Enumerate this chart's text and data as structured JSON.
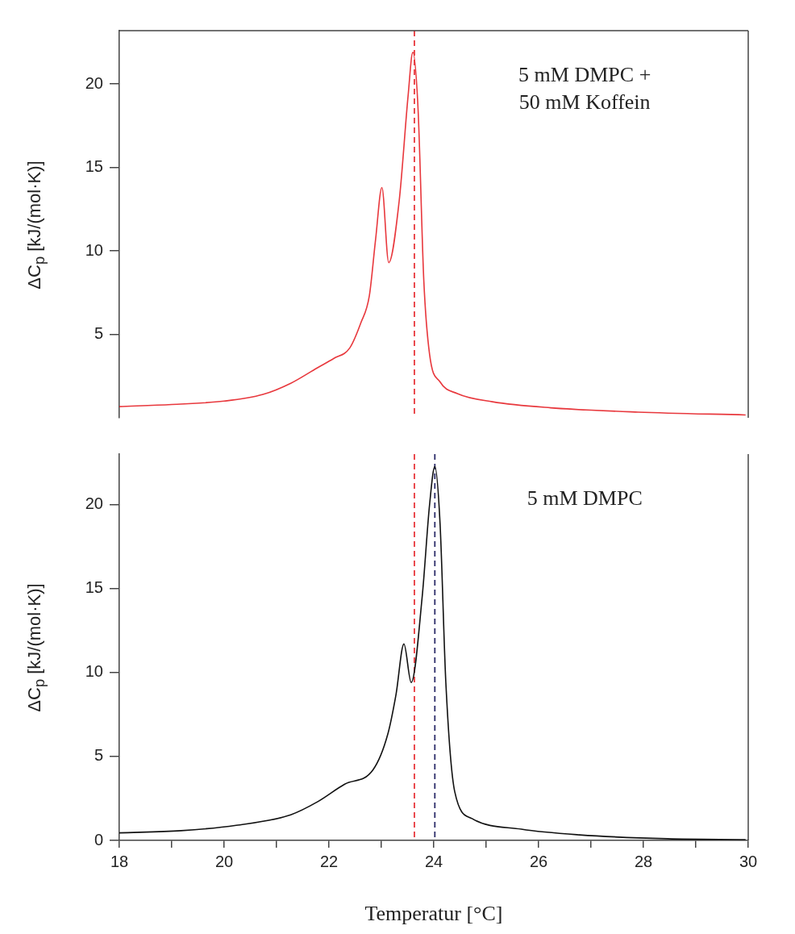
{
  "chart_data": [
    {
      "type": "line",
      "ylabel": "ΔC$_{p}$ [kJ/(mol·K)]",
      "annotations": [
        "5 mM DMPC +\n50 mM Koffein"
      ],
      "tick_labels": "y",
      "xlim": [
        18,
        30
      ],
      "ylim": [
        0,
        23.2
      ],
      "yticks": [
        5,
        10,
        15,
        20
      ],
      "marker": "none",
      "line_style": "solid",
      "series": [
        {
          "color": "#e8383d",
          "x": [
            18.0,
            19.0,
            20.0,
            20.74,
            21.27,
            21.78,
            22.09,
            22.4,
            22.61,
            22.77,
            22.89,
            23.01,
            23.14,
            23.34,
            23.51,
            23.6,
            23.7,
            23.81,
            23.92,
            24.12,
            24.45,
            25.12,
            26.23,
            27.9,
            29.95
          ],
          "values": [
            0.67,
            0.8,
            1.0,
            1.4,
            2.07,
            3.0,
            3.55,
            4.2,
            5.7,
            7.3,
            10.7,
            13.8,
            9.3,
            13.0,
            19.3,
            21.9,
            18.5,
            8.2,
            3.8,
            2.15,
            1.45,
            0.96,
            0.6,
            0.34,
            0.17
          ]
        }
      ],
      "ref_lines": [
        {
          "axis": "x",
          "value": 23.63,
          "color": "#e8383d",
          "line_style": "dashed"
        }
      ]
    },
    {
      "type": "line",
      "ylabel": "ΔC$_{p}$ [kJ/(mol·K)]",
      "xlabel": "Temperatur [°C]",
      "annotations": [
        "5 mM DMPC"
      ],
      "xlim": [
        18,
        30
      ],
      "xticks": [
        18,
        {
          "value": 19,
          "label": null
        },
        20,
        {
          "value": 21,
          "label": null
        },
        22,
        {
          "value": 23,
          "label": null
        },
        24,
        {
          "value": 25,
          "label": null
        },
        26,
        {
          "value": 27,
          "label": null
        },
        28,
        {
          "value": 29,
          "label": null
        },
        30
      ],
      "ylim": [
        0,
        23
      ],
      "yticks": [
        0,
        5,
        10,
        15,
        20
      ],
      "marker": "none",
      "line_style": "solid",
      "series": [
        {
          "color": "#111111",
          "x": [
            18.0,
            19.18,
            20.23,
            21.27,
            21.78,
            22.3,
            22.84,
            23.12,
            23.28,
            23.43,
            23.57,
            23.78,
            23.92,
            24.02,
            24.12,
            24.23,
            24.4,
            24.73,
            25.67,
            26.78,
            28.46,
            29.95
          ],
          "values": [
            0.45,
            0.58,
            0.9,
            1.53,
            2.3,
            3.35,
            4.2,
            6.3,
            8.7,
            11.7,
            9.4,
            14.55,
            20.0,
            22.25,
            18.85,
            9.4,
            2.9,
            1.3,
            0.67,
            0.33,
            0.1,
            0.05
          ]
        }
      ],
      "ref_lines": [
        {
          "axis": "x",
          "value": 23.63,
          "color": "#e8383d",
          "line_style": "dashed"
        },
        {
          "axis": "x",
          "value": 24.02,
          "color": "#2e2e6a",
          "line_style": "dashed"
        }
      ]
    }
  ]
}
